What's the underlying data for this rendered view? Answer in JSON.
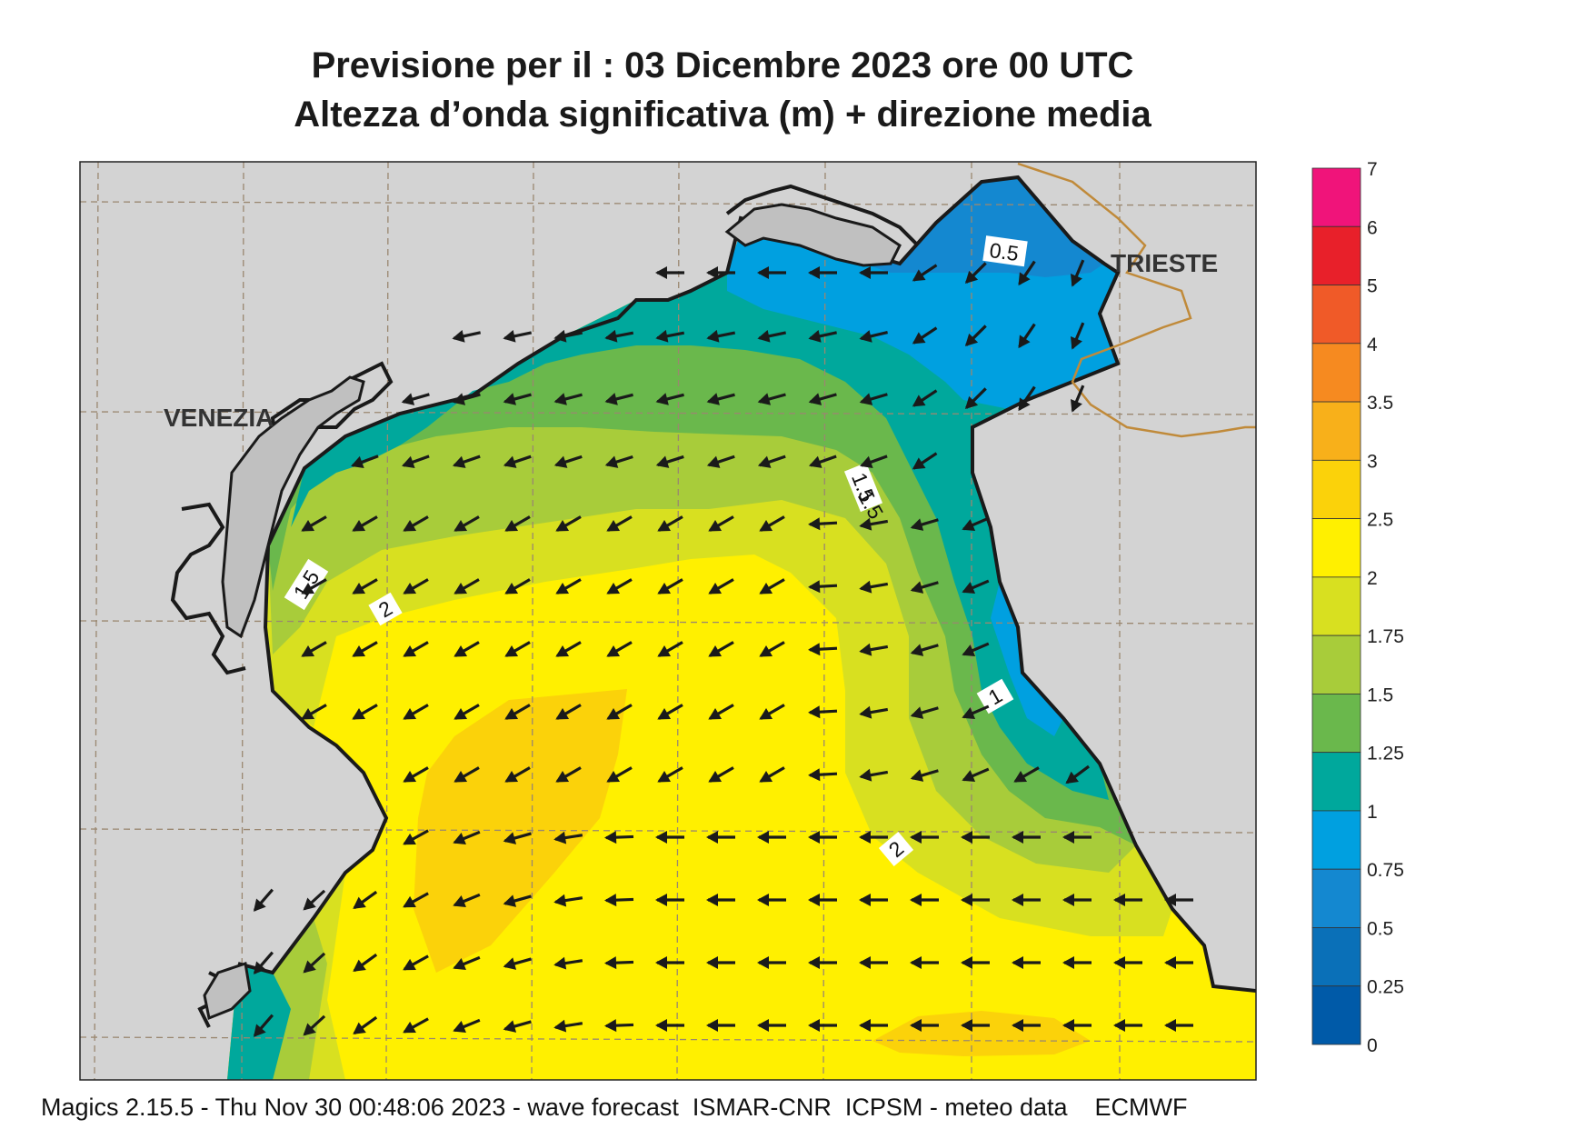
{
  "title": {
    "line1": "Previsione per il  :  03 Dicembre  2023   ore 00 UTC",
    "line2": "Altezza d’onda significativa (m) + direzione media"
  },
  "map": {
    "cities": [
      "VENEZIA",
      "TRIESTE"
    ],
    "contour_labels": [
      "0.5",
      "1",
      "1.5",
      "2",
      "1.5",
      "1.5",
      "2"
    ]
  },
  "colorbar": {
    "levels": [
      {
        "label": "7",
        "color": "#f0147a"
      },
      {
        "label": "6",
        "color": "#e8202a"
      },
      {
        "label": "5",
        "color": "#f05a28"
      },
      {
        "label": "4",
        "color": "#f68a20"
      },
      {
        "label": "3.5",
        "color": "#f8b01a"
      },
      {
        "label": "3",
        "color": "#fbd20a"
      },
      {
        "label": "2.5",
        "color": "#fff000"
      },
      {
        "label": "2",
        "color": "#d8e020"
      },
      {
        "label": "1.75",
        "color": "#a8cc3a"
      },
      {
        "label": "1.5",
        "color": "#6ab84c"
      },
      {
        "label": "1.25",
        "color": "#00a89c"
      },
      {
        "label": "1",
        "color": "#00a0e0"
      },
      {
        "label": "0.75",
        "color": "#1488d0"
      },
      {
        "label": "0.5",
        "color": "#0a70b8"
      },
      {
        "label": "0.25",
        "color": "#005aa8"
      },
      {
        "label": "0",
        "color": ""
      }
    ]
  },
  "footer": "Magics 2.15.5 - Thu Nov 30 00:48:06 2023 - wave forecast  ISMAR-CNR  ICPSM - meteo data    ECMWF"
}
